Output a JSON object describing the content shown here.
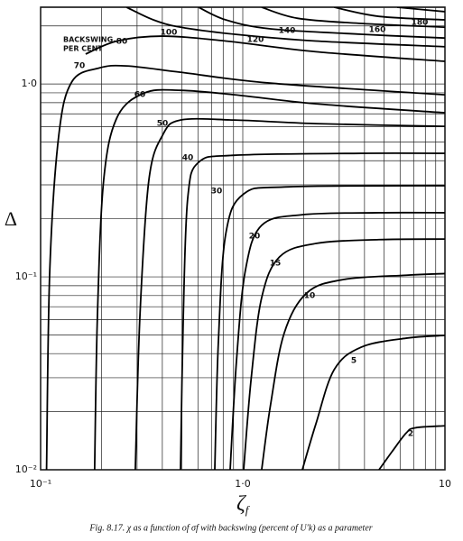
{
  "chart_data": {
    "type": "line",
    "xlabel": {
      "symbol": "ζ",
      "subscript": "f"
    },
    "ylabel": "Δ",
    "annotation": [
      "BACKSWING,",
      "PER CENT"
    ],
    "caption": "Fig. 8.17. χ as a function of σf with backswing (percent of U′k) as a parameter",
    "xlog": true,
    "ylog": true,
    "grid": true,
    "xlim": [
      0.1,
      10
    ],
    "ylim": [
      0.01,
      2.5
    ],
    "xticks": [
      {
        "value": 0.1,
        "label": "10⁻¹"
      },
      {
        "value": 1,
        "label": "1·0"
      },
      10
    ],
    "yticks": [
      {
        "value": 0.01,
        "label": "10⁻²"
      },
      {
        "value": 0.1,
        "label": "10⁻¹"
      },
      {
        "value": 1,
        "label": "1·0"
      }
    ],
    "xminor": [
      0.2,
      0.3,
      0.4,
      0.5,
      0.6,
      0.7,
      0.8,
      0.9,
      2,
      3,
      4,
      5,
      6,
      7,
      8,
      9
    ],
    "yminor": [
      0.02,
      0.03,
      0.04,
      0.05,
      0.06,
      0.07,
      0.08,
      0.09,
      0.2,
      0.3,
      0.4,
      0.5,
      0.6,
      0.7,
      0.8,
      0.9,
      2
    ],
    "color": "#000000",
    "series": [
      {
        "name": "2",
        "x": [
          4.72,
          5.5,
          6.43,
          7.13,
          10
        ],
        "values": [
          0.01,
          0.0125,
          0.0155,
          0.0165,
          0.0169
        ]
      },
      {
        "name": "5",
        "x": [
          1.97,
          2.3,
          2.83,
          3.85,
          6.43,
          10
        ],
        "values": [
          0.01,
          0.0173,
          0.033,
          0.0432,
          0.0481,
          0.0497
        ]
      },
      {
        "name": "10",
        "x": [
          1.24,
          1.37,
          1.6,
          2.07,
          3.13,
          6.43,
          10
        ],
        "values": [
          0.01,
          0.0215,
          0.0508,
          0.0824,
          0.0968,
          0.102,
          0.104
        ]
      },
      {
        "name": "15",
        "x": [
          1.01,
          1.1,
          1.24,
          1.52,
          2.3,
          4.72,
          10
        ],
        "values": [
          0.01,
          0.0296,
          0.078,
          0.127,
          0.149,
          0.156,
          0.157
        ]
      },
      {
        "name": "20",
        "x": [
          0.866,
          0.931,
          1.03,
          1.24,
          1.97,
          4.72,
          10
        ],
        "values": [
          0.01,
          0.0368,
          0.108,
          0.185,
          0.21,
          0.215,
          0.215
        ]
      },
      {
        "name": "30",
        "x": [
          0.727,
          0.757,
          0.823,
          1.01,
          1.69,
          10
        ],
        "values": [
          0.01,
          0.0456,
          0.166,
          0.269,
          0.293,
          0.297
        ]
      },
      {
        "name": "40",
        "x": [
          0.492,
          0.508,
          0.534,
          0.604,
          0.912,
          3.85,
          10
        ],
        "values": [
          0.01,
          0.063,
          0.255,
          0.392,
          0.427,
          0.437,
          0.437
        ]
      },
      {
        "name": "50",
        "x": [
          0.294,
          0.31,
          0.343,
          0.401,
          0.492,
          0.912,
          2.3,
          10
        ],
        "values": [
          0.01,
          0.063,
          0.316,
          0.542,
          0.65,
          0.65,
          0.623,
          0.603
        ]
      },
      {
        "name": "60",
        "x": [
          0.185,
          0.191,
          0.205,
          0.239,
          0.326,
          0.492,
          0.912,
          2.3,
          10
        ],
        "values": [
          0.01,
          0.063,
          0.316,
          0.672,
          0.898,
          0.927,
          0.879,
          0.789,
          0.709
        ]
      },
      {
        "name": "70",
        "x": [
          0.107,
          0.111,
          0.123,
          0.143,
          0.195,
          0.266,
          0.492,
          1.37,
          10
        ],
        "values": [
          0.01,
          0.108,
          0.542,
          1.03,
          1.21,
          1.24,
          1.15,
          1.01,
          0.879
        ]
      },
      {
        "name": "80",
        "x": [
          0.167,
          0.239,
          0.401,
          0.823,
          2.3,
          10
        ],
        "values": [
          1.43,
          1.67,
          1.77,
          1.67,
          1.47,
          1.31
        ]
      },
      {
        "name": "100",
        "x": [
          0.266,
          0.361,
          0.492,
          0.912,
          2.3,
          10
        ],
        "values": [
          2.5,
          2.15,
          1.97,
          1.81,
          1.67,
          1.56
        ]
      },
      {
        "name": "120",
        "x": [
          0.604,
          0.823,
          1.37,
          3.85,
          10
        ],
        "values": [
          2.5,
          2.15,
          1.93,
          1.81,
          1.73
        ]
      },
      {
        "name": "140",
        "x": [
          1.24,
          1.87,
          3.85,
          10
        ],
        "values": [
          2.5,
          2.19,
          2.06,
          1.97
        ]
      },
      {
        "name": "160",
        "x": [
          2.83,
          4.72,
          10
        ],
        "values": [
          2.5,
          2.24,
          2.15
        ]
      },
      {
        "name": "180",
        "x": [
          5.8,
          10
        ],
        "values": [
          2.5,
          2.37
        ]
      }
    ]
  }
}
